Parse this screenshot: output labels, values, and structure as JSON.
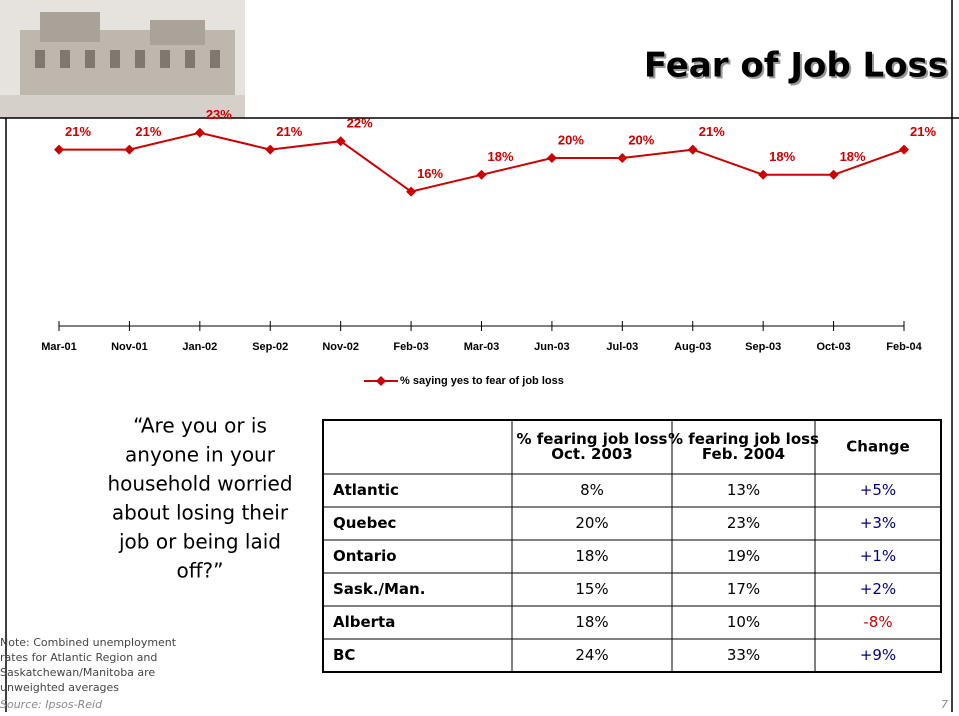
{
  "chart_data": {
    "type": "line",
    "title": "Fear of Job Loss",
    "categories": [
      "Mar-01",
      "Nov-01",
      "Jan-02",
      "Sep-02",
      "Nov-02",
      "Feb-03",
      "Mar-03",
      "Jun-03",
      "Jul-03",
      "Aug-03",
      "Sep-03",
      "Oct-03",
      "Feb-04"
    ],
    "series": [
      {
        "name": "% saying yes to fear of job loss",
        "color": "#cc0000",
        "values": [
          21,
          21,
          23,
          21,
          22,
          16,
          18,
          20,
          20,
          21,
          18,
          18,
          21
        ],
        "value_labels": [
          "21%",
          "21%",
          "23%",
          "21%",
          "22%",
          "16%",
          "18%",
          "20%",
          "20%",
          "21%",
          "18%",
          "18%",
          "21%"
        ]
      }
    ],
    "ylim": [
      0,
      26
    ],
    "legend": "bottom",
    "grid": false
  },
  "question": [
    "“Are you or is",
    "anyone in your",
    "household worried",
    "about losing their",
    "job or being laid",
    "off?”"
  ],
  "table": {
    "columns": [
      [
        "% fearing job loss",
        "Oct. 2003"
      ],
      [
        "% fearing job loss",
        "Feb. 2004"
      ],
      [
        "Change"
      ]
    ],
    "rows": [
      [
        "Atlantic",
        "8%",
        "13%",
        "+5%"
      ],
      [
        "Quebec",
        "20%",
        "23%",
        "+3%"
      ],
      [
        "Ontario",
        "18%",
        "19%",
        "+1%"
      ],
      [
        "Sask./Man.",
        "15%",
        "17%",
        "+2%"
      ],
      [
        "Alberta",
        "18%",
        "10%",
        "-8%"
      ],
      [
        "BC",
        "24%",
        "33%",
        "+9%"
      ]
    ]
  },
  "note": [
    "Note: Combined unemployment",
    "rates for Atlantic Region and",
    "Saskatchewan/Manitoba are",
    "unweighted averages"
  ],
  "source": "Source: Ipsos-Reid",
  "page_number": "7"
}
